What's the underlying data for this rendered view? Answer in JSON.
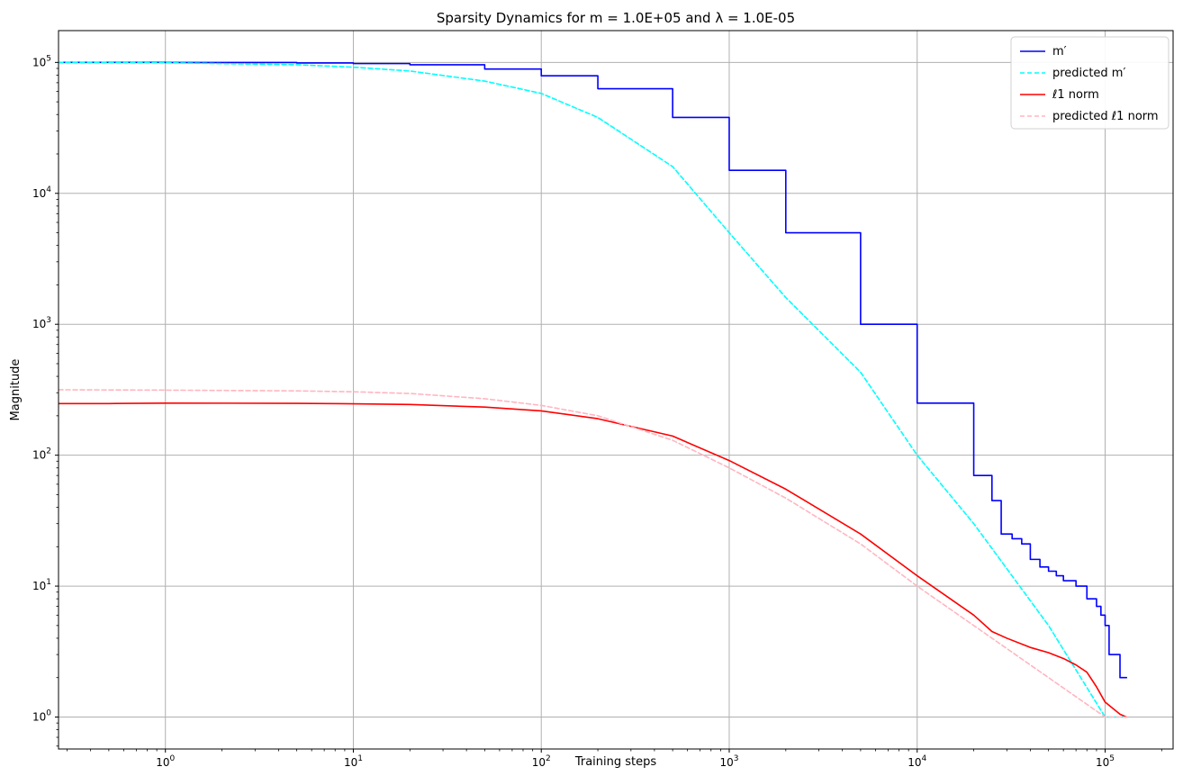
{
  "chart_data": {
    "type": "line",
    "title": "Sparsity Dynamics for m = 1.0E+05 and λ = 1.0E-05",
    "xlabel": "Training steps",
    "ylabel": "Magnitude",
    "xscale": "log",
    "yscale": "log",
    "xlim": [
      0.27,
      230000
    ],
    "ylim": [
      0.57,
      175000
    ],
    "grid": true,
    "legend_position": "top-right",
    "x_ticks": [
      {
        "value": 1,
        "label": "10^0"
      },
      {
        "value": 10,
        "label": "10^1"
      },
      {
        "value": 100,
        "label": "10^2"
      },
      {
        "value": 1000,
        "label": "10^3"
      },
      {
        "value": 10000,
        "label": "10^4"
      },
      {
        "value": 100000,
        "label": "10^5"
      }
    ],
    "y_ticks": [
      {
        "value": 1,
        "label": "10^0"
      },
      {
        "value": 10,
        "label": "10^1"
      },
      {
        "value": 100,
        "label": "10^2"
      },
      {
        "value": 1000,
        "label": "10^3"
      },
      {
        "value": 10000,
        "label": "10^4"
      },
      {
        "value": 100000,
        "label": "10^5"
      }
    ],
    "series": [
      {
        "name": "m′",
        "color": "#0000ff",
        "dash": "solid",
        "step": true,
        "points": [
          [
            0.27,
            100000
          ],
          [
            1,
            99800
          ],
          [
            5,
            99000
          ],
          [
            10,
            98000
          ],
          [
            20,
            96000
          ],
          [
            50,
            89000
          ],
          [
            100,
            79000
          ],
          [
            200,
            63000
          ],
          [
            500,
            38000
          ],
          [
            1000,
            15000
          ],
          [
            2000,
            5000
          ],
          [
            5000,
            1000
          ],
          [
            10000,
            250
          ],
          [
            20000,
            70
          ],
          [
            25000,
            45
          ],
          [
            28000,
            25
          ],
          [
            32000,
            23
          ],
          [
            36000,
            21
          ],
          [
            40000,
            16
          ],
          [
            45000,
            14
          ],
          [
            50000,
            13
          ],
          [
            55000,
            12
          ],
          [
            60000,
            11
          ],
          [
            70000,
            10
          ],
          [
            80000,
            8
          ],
          [
            90000,
            7
          ],
          [
            95000,
            6
          ],
          [
            100000,
            5
          ],
          [
            105000,
            3
          ],
          [
            120000,
            2
          ],
          [
            130000,
            2
          ]
        ]
      },
      {
        "name": "predicted m′",
        "color": "#00ffff",
        "dash": "dashed",
        "step": false,
        "points": [
          [
            0.27,
            100000
          ],
          [
            1,
            99500
          ],
          [
            5,
            96000
          ],
          [
            10,
            92000
          ],
          [
            20,
            86000
          ],
          [
            50,
            72000
          ],
          [
            100,
            58000
          ],
          [
            200,
            38000
          ],
          [
            500,
            16000
          ],
          [
            1000,
            5000
          ],
          [
            2000,
            1600
          ],
          [
            5000,
            430
          ],
          [
            10000,
            100
          ],
          [
            20000,
            30
          ],
          [
            50000,
            5
          ],
          [
            100000,
            1
          ],
          [
            130000,
            1
          ]
        ]
      },
      {
        "name": "ℓ1 norm",
        "color": "#ff0000",
        "dash": "solid",
        "step": false,
        "points": [
          [
            0.27,
            248
          ],
          [
            0.5,
            248
          ],
          [
            1,
            250
          ],
          [
            5,
            249
          ],
          [
            10,
            247
          ],
          [
            20,
            244
          ],
          [
            50,
            233
          ],
          [
            100,
            218
          ],
          [
            200,
            190
          ],
          [
            500,
            140
          ],
          [
            1000,
            91
          ],
          [
            2000,
            55
          ],
          [
            5000,
            25
          ],
          [
            10000,
            12
          ],
          [
            20000,
            6
          ],
          [
            25000,
            4.5
          ],
          [
            30000,
            4.0
          ],
          [
            40000,
            3.4
          ],
          [
            50000,
            3.1
          ],
          [
            60000,
            2.8
          ],
          [
            70000,
            2.5
          ],
          [
            80000,
            2.2
          ],
          [
            90000,
            1.7
          ],
          [
            100000,
            1.3
          ],
          [
            120000,
            1.05
          ],
          [
            130000,
            1
          ]
        ]
      },
      {
        "name": "predicted ℓ1 norm",
        "color": "#ffb6c1",
        "dash": "dashed",
        "step": false,
        "points": [
          [
            0.27,
            316
          ],
          [
            1,
            314
          ],
          [
            5,
            310
          ],
          [
            10,
            305
          ],
          [
            20,
            296
          ],
          [
            50,
            270
          ],
          [
            100,
            240
          ],
          [
            200,
            200
          ],
          [
            500,
            130
          ],
          [
            1000,
            80
          ],
          [
            2000,
            47
          ],
          [
            5000,
            21
          ],
          [
            10000,
            10
          ],
          [
            20000,
            5
          ],
          [
            50000,
            2
          ],
          [
            100000,
            1
          ],
          [
            130000,
            1
          ]
        ]
      }
    ]
  }
}
